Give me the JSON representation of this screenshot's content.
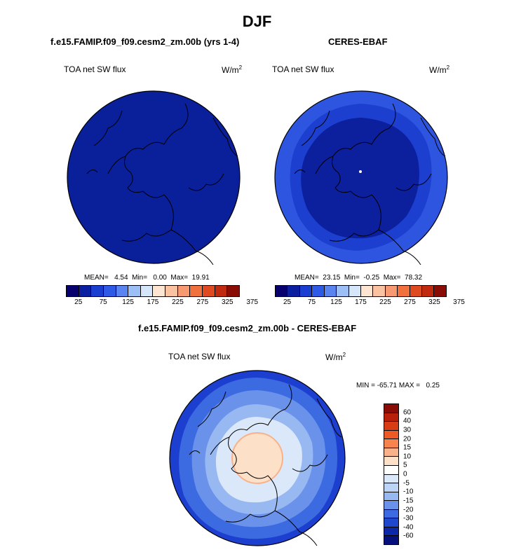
{
  "main_title": "DJF",
  "panels": {
    "model": {
      "title": "f.e15.FAMIP.f09_f09.cesm2_zm.00b (yrs 1-4)",
      "variable": "TOA net SW flux",
      "units": "W/m",
      "units_exp": "2",
      "stats": "MEAN=   4.54  Min=   0.00  Max=  19.91",
      "fill": "#0a1f9a"
    },
    "obs": {
      "title": "CERES-EBAF",
      "variable": "TOA net SW flux",
      "units": "W/m",
      "units_exp": "2",
      "stats": "MEAN=  23.15  Min=  -0.25  Max=  78.32",
      "fill_outer": "#2e55e0",
      "fill_mid": "#1c3fd0",
      "fill_inner": "#0c1f9c"
    },
    "diff": {
      "title": "f.e15.FAMIP.f09_f09.cesm2_zm.00b - CERES-EBAF",
      "variable": "TOA net SW flux",
      "units": "W/m",
      "units_exp": "2",
      "minmax": "MIN = -65.71 MAX =   0.25"
    }
  },
  "colorbar_top": {
    "colors": [
      "#08006e",
      "#0c1fa0",
      "#1a3fd0",
      "#2e5ae6",
      "#5a84f0",
      "#9cbff6",
      "#d6e6fa",
      "#fde5d2",
      "#fbc2a2",
      "#f79a72",
      "#f0703e",
      "#e04a20",
      "#c02a10",
      "#8a0c06"
    ],
    "ticks": [
      "25",
      "75",
      "125",
      "175",
      "225",
      "275",
      "325",
      "375"
    ]
  },
  "colorbar_diff": {
    "colors": [
      "#8a0c06",
      "#b8200c",
      "#d83c14",
      "#ee5a26",
      "#f7844c",
      "#f8b28a",
      "#fde0c8",
      "#ffffff",
      "#dbe8fa",
      "#bcd4f6",
      "#98b8f2",
      "#6a92ea",
      "#3c6ae0",
      "#2048cc",
      "#0c28a8",
      "#06107a"
    ],
    "ticks": [
      "60",
      "40",
      "30",
      "20",
      "15",
      "10",
      "5",
      "0",
      "-5",
      "-10",
      "-15",
      "-20",
      "-30",
      "-40",
      "-60"
    ]
  }
}
